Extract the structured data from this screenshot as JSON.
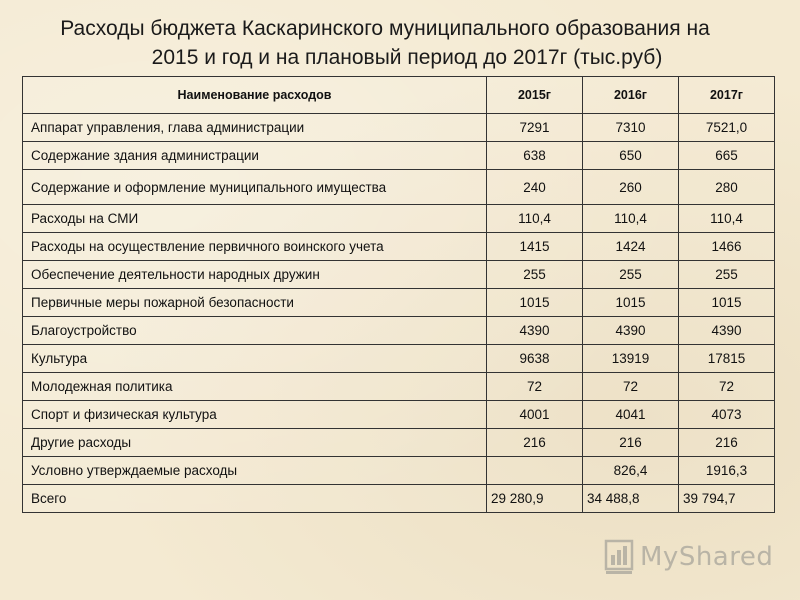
{
  "title": {
    "line1": "Расходы бюджета Каскаринского муниципального образования на",
    "line2": "2015 и год и на плановый период до 2017г (тыс.руб)"
  },
  "table": {
    "headers": [
      "Наименование расходов",
      "2015г",
      "2016г",
      "2017г"
    ],
    "rows": [
      [
        "Аппарат управления, глава администрации",
        "7291",
        "7310",
        "7521,0"
      ],
      [
        "Содержание здания администрации",
        "638",
        "650",
        "665"
      ],
      [
        "Содержание и оформление муниципального имущества",
        "240",
        "260",
        "280"
      ],
      [
        "Расходы на СМИ",
        "110,4",
        "110,4",
        "110,4"
      ],
      [
        "Расходы на осуществление первичного воинского учета",
        "1415",
        "1424",
        "1466"
      ],
      [
        "Обеспечение деятельности народных дружин",
        "255",
        "255",
        "255"
      ],
      [
        "Первичные меры пожарной безопасности",
        "1015",
        "1015",
        "1015"
      ],
      [
        "Благоустройство",
        "4390",
        "4390",
        "4390"
      ],
      [
        "Культура",
        "9638",
        "13919",
        "17815"
      ],
      [
        "Молодежная политика",
        "72",
        "72",
        "72"
      ],
      [
        "Спорт и физическая культура",
        "4001",
        "4041",
        "4073"
      ],
      [
        "Другие расходы",
        "216",
        "216",
        "216"
      ],
      [
        "Условно утверждаемые расходы",
        "",
        "826,4",
        "1916,3"
      ],
      [
        "Всего",
        "29 280,9",
        "34 488,8",
        "39 794,7"
      ]
    ]
  },
  "watermark": {
    "text": "MyShared",
    "icon": "bar-chart-logo-icon",
    "color": "#b9b4a6"
  }
}
